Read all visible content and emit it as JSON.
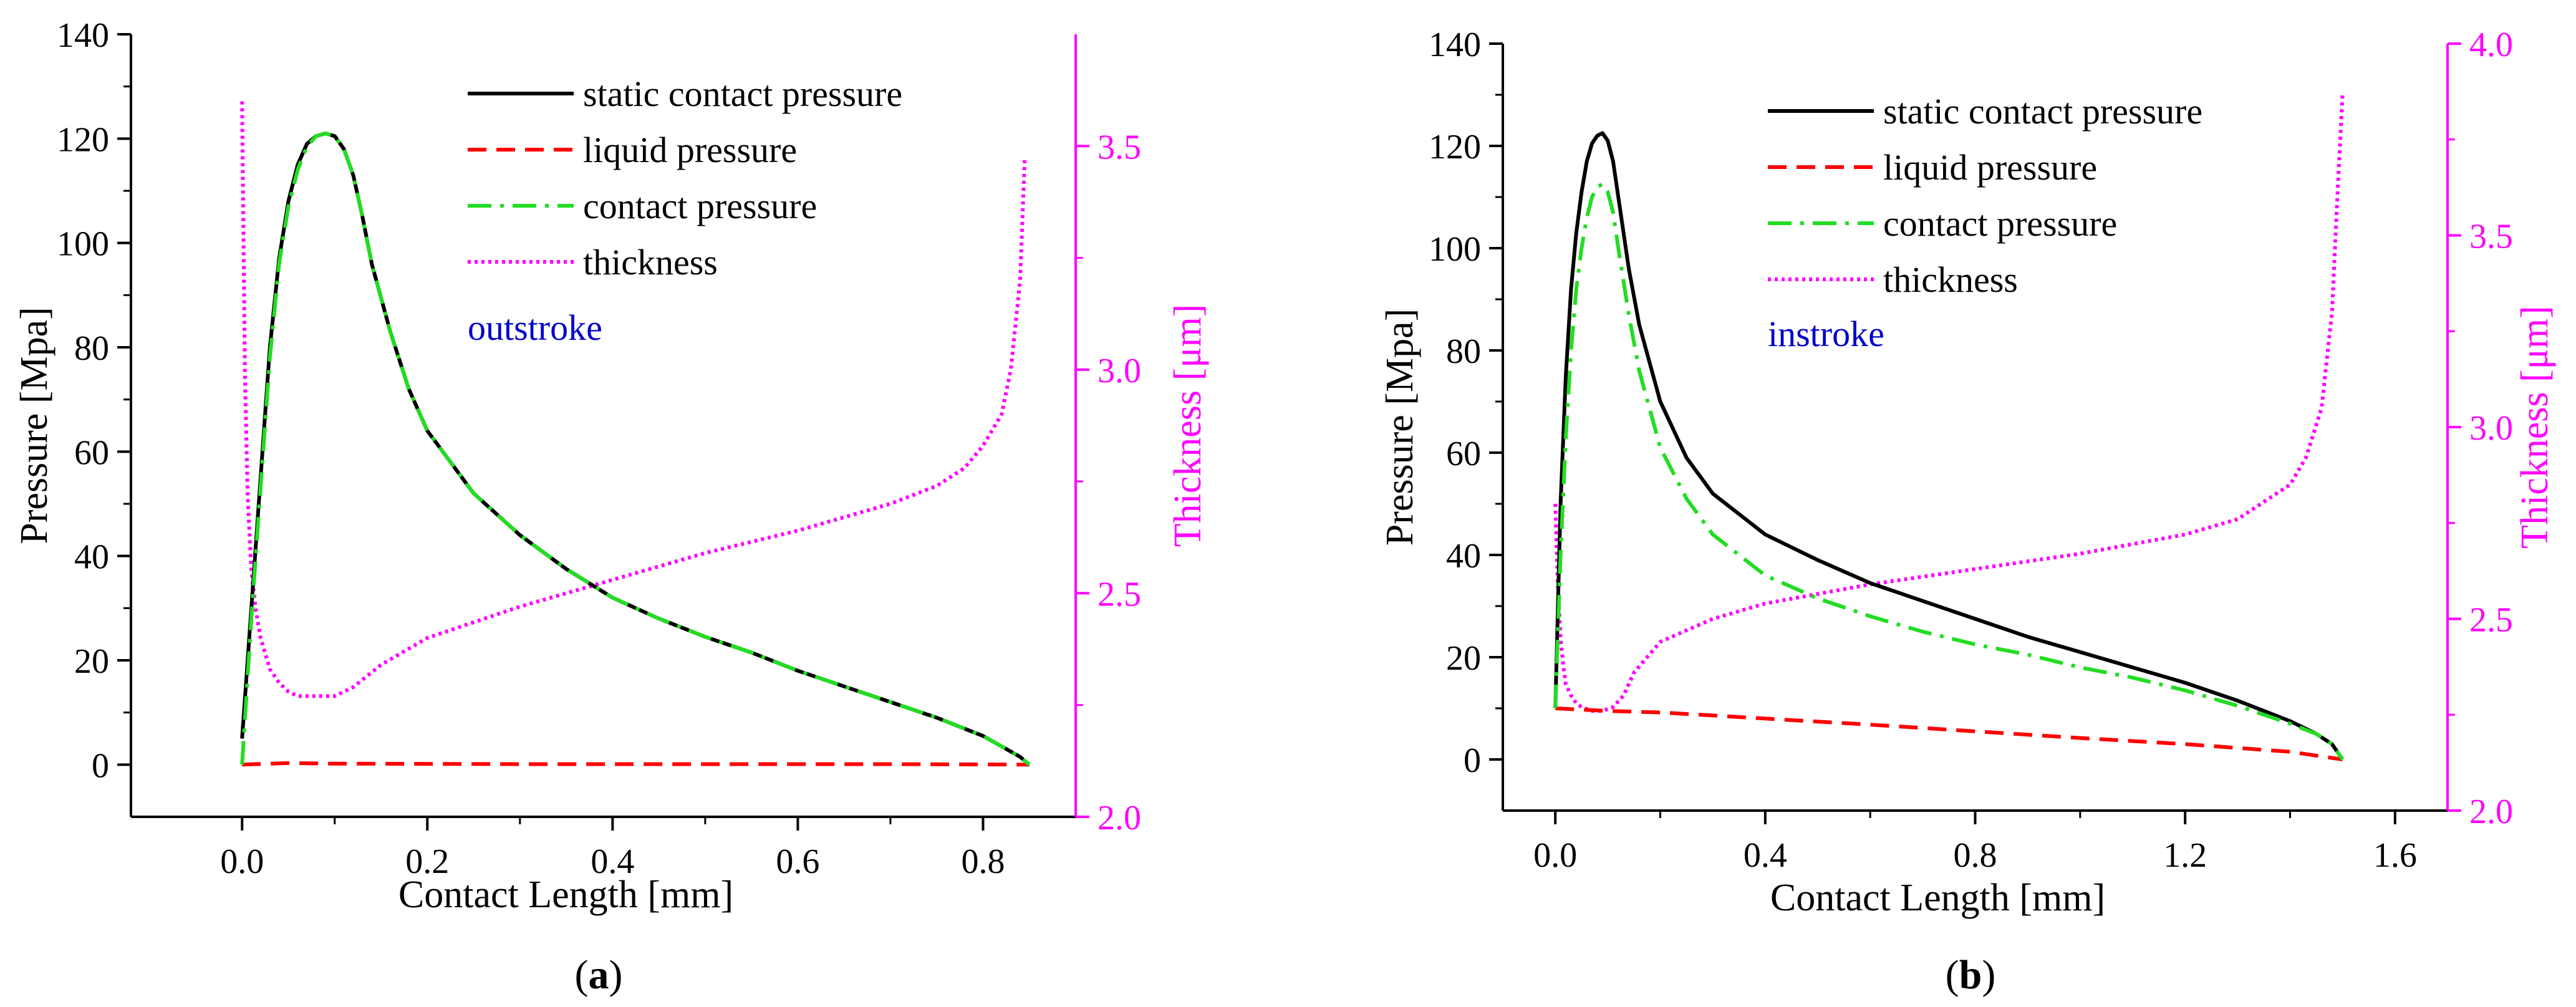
{
  "chart_data": [
    {
      "type": "line",
      "panel": "a",
      "caption_letter": "a",
      "xlabel": "Contact Length [mm]",
      "ylabel": "Pressure [Mpa]",
      "y2label": "Thickness [μm]",
      "annotation": "outstroke",
      "xlim": [
        -0.12,
        0.9
      ],
      "ylim": [
        -10,
        140
      ],
      "y2lim": [
        2.0,
        3.75
      ],
      "xticks": [
        0.0,
        0.2,
        0.4,
        0.6,
        0.8
      ],
      "xtick_labels": [
        "0.0",
        "0.2",
        "0.4",
        "0.6",
        "0.8"
      ],
      "yticks": [
        0,
        20,
        40,
        60,
        80,
        100,
        120,
        140
      ],
      "ytick_labels": [
        "0",
        "20",
        "40",
        "60",
        "80",
        "100",
        "120",
        "140"
      ],
      "y2ticks": [
        2.0,
        2.5,
        3.0,
        3.5
      ],
      "y2tick_labels": [
        "2.0",
        "2.5",
        "3.0",
        "3.5"
      ],
      "legend": [
        "static contact pressure",
        "liquid pressure",
        "contact pressure",
        "thickness"
      ],
      "series": [
        {
          "name": "static contact pressure",
          "axis": "left",
          "color": "#000000",
          "dash": "solid",
          "x": [
            0.0,
            0.01,
            0.02,
            0.03,
            0.04,
            0.05,
            0.06,
            0.07,
            0.08,
            0.09,
            0.1,
            0.11,
            0.12,
            0.13,
            0.14,
            0.16,
            0.18,
            0.2,
            0.25,
            0.3,
            0.35,
            0.4,
            0.45,
            0.5,
            0.55,
            0.6,
            0.65,
            0.7,
            0.75,
            0.8,
            0.82,
            0.84,
            0.85
          ],
          "y": [
            5,
            30,
            55,
            80,
            97,
            108,
            115,
            119,
            120.5,
            121,
            120.5,
            118,
            113,
            105,
            96,
            83,
            72,
            64,
            52,
            44,
            37.5,
            32,
            28,
            24.5,
            21.5,
            18,
            15,
            12,
            9,
            5.5,
            3.5,
            1.5,
            0
          ]
        },
        {
          "name": "liquid pressure",
          "axis": "left",
          "color": "#ff0000",
          "dash": "dashed",
          "x": [
            0.0,
            0.05,
            0.1,
            0.3,
            0.5,
            0.7,
            0.85
          ],
          "y": [
            0.0,
            0.3,
            0.2,
            0.1,
            0.1,
            0.1,
            0.0
          ]
        },
        {
          "name": "contact pressure",
          "axis": "left",
          "color": "#22dd22",
          "dash": "dashdot",
          "x": [
            0.0,
            0.01,
            0.02,
            0.03,
            0.04,
            0.05,
            0.06,
            0.07,
            0.08,
            0.09,
            0.1,
            0.11,
            0.12,
            0.13,
            0.14,
            0.16,
            0.18,
            0.2,
            0.25,
            0.3,
            0.35,
            0.4,
            0.45,
            0.5,
            0.55,
            0.6,
            0.65,
            0.7,
            0.75,
            0.8,
            0.82,
            0.84,
            0.85
          ],
          "y": [
            0,
            28,
            53,
            78,
            96,
            107,
            114,
            118.5,
            120.5,
            121,
            120.5,
            118,
            113,
            105,
            96,
            83,
            72,
            64,
            52,
            44,
            37.5,
            32,
            28,
            24.5,
            21.5,
            18,
            15,
            12,
            9,
            5.5,
            3.5,
            1.5,
            0
          ]
        },
        {
          "name": "thickness",
          "axis": "right",
          "color": "#ff00ff",
          "dash": "dotted",
          "x": [
            0.0,
            0.003,
            0.006,
            0.01,
            0.015,
            0.02,
            0.03,
            0.04,
            0.05,
            0.06,
            0.08,
            0.1,
            0.12,
            0.15,
            0.2,
            0.3,
            0.4,
            0.5,
            0.6,
            0.7,
            0.75,
            0.78,
            0.8,
            0.82,
            0.83,
            0.84,
            0.845
          ],
          "y": [
            3.6,
            3.0,
            2.72,
            2.55,
            2.46,
            2.4,
            2.33,
            2.3,
            2.28,
            2.27,
            2.27,
            2.27,
            2.29,
            2.34,
            2.4,
            2.47,
            2.53,
            2.59,
            2.64,
            2.7,
            2.74,
            2.78,
            2.83,
            2.9,
            3.0,
            3.2,
            3.47
          ]
        }
      ]
    },
    {
      "type": "line",
      "panel": "b",
      "caption_letter": "b",
      "xlabel": "Contact Length [mm]",
      "ylabel": "Pressure [Mpa]",
      "y2label": "Thickness [μm]",
      "annotation": "instroke",
      "xlim": [
        -0.1,
        1.7
      ],
      "ylim": [
        -10,
        140
      ],
      "y2lim": [
        2.0,
        4.0
      ],
      "xticks": [
        0.0,
        0.4,
        0.8,
        1.2,
        1.6
      ],
      "xtick_labels": [
        "0.0",
        "0.4",
        "0.8",
        "1.2",
        "1.6"
      ],
      "yticks": [
        0,
        20,
        40,
        60,
        80,
        100,
        120,
        140
      ],
      "ytick_labels": [
        "0",
        "20",
        "40",
        "60",
        "80",
        "100",
        "120",
        "140"
      ],
      "y2ticks": [
        2.0,
        2.5,
        3.0,
        3.5,
        4.0
      ],
      "y2tick_labels": [
        "2.0",
        "2.5",
        "3.0",
        "3.5",
        "4.0"
      ],
      "legend": [
        "static contact pressure",
        "liquid pressure",
        "contact pressure",
        "thickness"
      ],
      "series": [
        {
          "name": "static contact pressure",
          "axis": "left",
          "color": "#000000",
          "dash": "solid",
          "x": [
            0.0,
            0.01,
            0.02,
            0.03,
            0.04,
            0.05,
            0.06,
            0.07,
            0.08,
            0.09,
            0.1,
            0.11,
            0.12,
            0.14,
            0.16,
            0.2,
            0.25,
            0.3,
            0.4,
            0.5,
            0.6,
            0.7,
            0.8,
            0.9,
            1.0,
            1.1,
            1.2,
            1.3,
            1.4,
            1.45,
            1.48,
            1.5
          ],
          "y": [
            10,
            50,
            75,
            92,
            103,
            111,
            117,
            120.5,
            122,
            122.5,
            121,
            117,
            110,
            96,
            85,
            70,
            59,
            52,
            44,
            39,
            34.5,
            31,
            27.5,
            24,
            21,
            18,
            15,
            11.5,
            7.5,
            5,
            3,
            0
          ]
        },
        {
          "name": "liquid pressure",
          "axis": "left",
          "color": "#ff0000",
          "dash": "dashed",
          "x": [
            0.0,
            0.1,
            0.2,
            0.4,
            0.6,
            0.8,
            1.0,
            1.2,
            1.4,
            1.5
          ],
          "y": [
            10,
            9.5,
            9.2,
            8.0,
            6.8,
            5.5,
            4.2,
            3.0,
            1.5,
            0
          ]
        },
        {
          "name": "contact pressure",
          "axis": "left",
          "color": "#22dd22",
          "dash": "dashdot",
          "x": [
            0.0,
            0.01,
            0.02,
            0.03,
            0.04,
            0.05,
            0.06,
            0.07,
            0.08,
            0.09,
            0.1,
            0.11,
            0.12,
            0.14,
            0.16,
            0.2,
            0.25,
            0.3,
            0.4,
            0.5,
            0.6,
            0.7,
            0.8,
            0.9,
            1.0,
            1.1,
            1.2,
            1.3,
            1.4,
            1.45,
            1.48,
            1.5
          ],
          "y": [
            10,
            40,
            63,
            80,
            92,
            100,
            106,
            110,
            112,
            112.5,
            111,
            107,
            100,
            87,
            76,
            61,
            51,
            44,
            36,
            31.5,
            28,
            25,
            22.5,
            20.5,
            18,
            16,
            13.5,
            10.5,
            7,
            5,
            3,
            0
          ]
        },
        {
          "name": "thickness",
          "axis": "right",
          "color": "#ff00ff",
          "dash": "dotted",
          "x": [
            0.0,
            0.005,
            0.01,
            0.015,
            0.02,
            0.03,
            0.04,
            0.05,
            0.07,
            0.09,
            0.11,
            0.13,
            0.15,
            0.2,
            0.3,
            0.4,
            0.6,
            0.8,
            1.0,
            1.2,
            1.3,
            1.4,
            1.43,
            1.46,
            1.48,
            1.49,
            1.5
          ],
          "y": [
            2.8,
            2.58,
            2.45,
            2.38,
            2.33,
            2.3,
            2.28,
            2.27,
            2.26,
            2.26,
            2.27,
            2.3,
            2.36,
            2.44,
            2.5,
            2.54,
            2.59,
            2.63,
            2.67,
            2.72,
            2.76,
            2.85,
            2.92,
            3.05,
            3.3,
            3.6,
            3.87
          ]
        }
      ]
    }
  ]
}
